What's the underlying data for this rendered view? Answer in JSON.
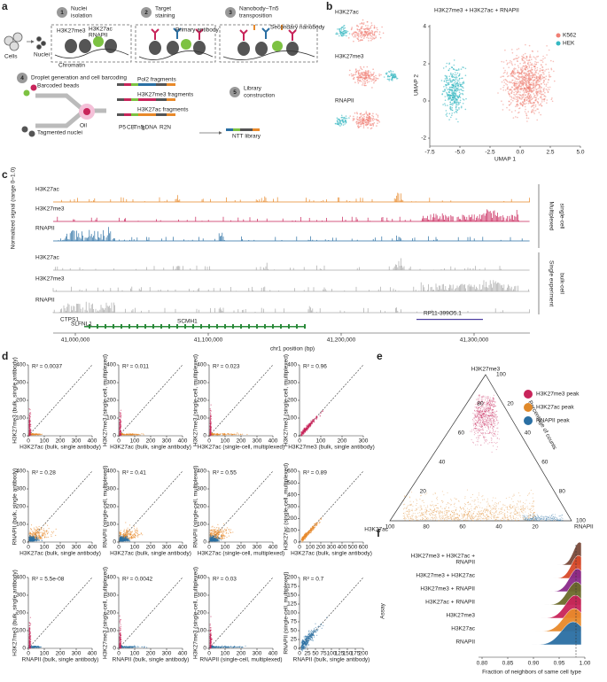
{
  "panel_a": {
    "label": "a",
    "cells": "Cells",
    "nuclei": "Nuclei",
    "steps": [
      {
        "number": "1",
        "title": [
          "Nuclei",
          "isolation"
        ]
      },
      {
        "number": "2",
        "title": [
          "Target",
          "staining"
        ]
      },
      {
        "number": "3",
        "title": [
          "Nanobody–Tn5",
          "transposition"
        ]
      },
      {
        "number": "4",
        "title": [
          "Droplet generation and cell barcoding"
        ]
      },
      {
        "number": "5",
        "title": [
          "Library",
          "construction"
        ]
      }
    ],
    "marks": {
      "h3k27me3": "H3K27me3",
      "h3k27ac": "H3K27ac",
      "rnapii": "RNAPII",
      "chromatin": "Chromatin",
      "primary": "Primary antibody",
      "secondary": "Secondary nanobody",
      "beads": "Barcoded beads",
      "oil": "Oil",
      "tagmented": "Tagmented nuclei",
      "library": "NTT library"
    },
    "fragments": [
      "Pol2 fragments",
      "H3K27me3 fragments",
      "H3K27ac fragments"
    ],
    "read_structure": [
      "P5",
      "CB",
      "Tn5",
      "gDNA",
      "R2N"
    ]
  },
  "panel_b": {
    "label": "b",
    "small_titles": [
      "H3K27ac",
      "H3K27me3",
      "RNAPII"
    ],
    "title": "H3K27me3 + H3K27ac + RNAPII",
    "legend": [
      {
        "name": "K562",
        "color": "#f07f74"
      },
      {
        "name": "HEK",
        "color": "#35b8c2"
      }
    ],
    "xlabel": "UMAP 1",
    "ylabel": "UMAP 2",
    "xticks": [
      "-7.5",
      "-5.0",
      "-2.5",
      "0.0",
      "2.5",
      "5.0"
    ],
    "yticks": [
      "4",
      "2",
      "0",
      "-2"
    ]
  },
  "panel_c": {
    "label": "c",
    "ylabel": "Normalized signal (range 0–1.0)",
    "multiplexed_tracks": [
      "H3K27ac",
      "H3K27me3",
      "RNAPII"
    ],
    "multiplexed_group": [
      "Multiplexed",
      "single-cell"
    ],
    "bulk_tracks": [
      "H3K27ac",
      "H3K27me3",
      "RNAPII"
    ],
    "bulk_group": [
      "Single experiment",
      "bulk-cell"
    ],
    "genes": [
      "CTPS1",
      "SLFNL1",
      "SCMH1",
      "RP11-399O5.1"
    ],
    "xlabel": "chr1 position (bp)",
    "xticks": [
      "41,000,000",
      "41,100,000",
      "41,200,000",
      "41,300,000"
    ],
    "track_colors": [
      "#e8892a",
      "#c8245a",
      "#2a6fa3",
      "#aaaaaa"
    ]
  },
  "panel_d": {
    "label": "d",
    "plots": [
      {
        "r2": "R² = 0.0037",
        "ylabel": "H3K27me3 (bulk, single antibody)",
        "xlabel": "H3K27ac (bulk, single antibody)",
        "xticks": [
          "0",
          "100",
          "200",
          "300",
          "400"
        ],
        "yticks": [
          "0",
          "100",
          "200",
          "300",
          "400"
        ],
        "colors": [
          "#c8245a",
          "#e8892a"
        ]
      },
      {
        "r2": "R² = 0.011",
        "ylabel": "H3K27me3 (single-cell, multiplexed)",
        "xlabel": "H3K27ac (bulk, single antibody)",
        "xticks": [
          "0",
          "100",
          "200",
          "300",
          "400"
        ],
        "yticks": [
          "0",
          "100",
          "200",
          "300",
          "400"
        ],
        "colors": [
          "#c8245a",
          "#e8892a"
        ]
      },
      {
        "r2": "R² = 0.023",
        "ylabel": "H3K27me3 (single-cell, multiplexed)",
        "xlabel": "H3K27ac (single-cell, multiplexed)",
        "xticks": [
          "0",
          "100",
          "200",
          "300",
          "400"
        ],
        "yticks": [
          "0",
          "100",
          "200",
          "300",
          "400"
        ],
        "colors": [
          "#c8245a",
          "#e8892a"
        ]
      },
      {
        "r2": "R² = 0.96",
        "ylabel": "H3K27me3 (single-cell, multiplexed)",
        "xlabel": "H3K27me3 (bulk, single antibody)",
        "xticks": [
          "0",
          "100",
          "200",
          "300"
        ],
        "yticks": [
          "0",
          "100",
          "200",
          "300",
          "400"
        ],
        "colors": [
          "#c8245a",
          "#c8245a"
        ]
      },
      {
        "r2": "R² = 0.28",
        "ylabel": "RNAPII (bulk, single antibody)",
        "xlabel": "H3K27ac (bulk, single antibody)",
        "xticks": [
          "0",
          "100",
          "200",
          "300",
          "400"
        ],
        "yticks": [
          "0",
          "100",
          "200",
          "300",
          "400"
        ],
        "colors": [
          "#2a6fa3",
          "#e8892a"
        ]
      },
      {
        "r2": "R² = 0.41",
        "ylabel": "RNAPII (single-cell, multiplexed)",
        "xlabel": "H3K27ac (bulk, single antibody)",
        "xticks": [
          "0",
          "100",
          "200",
          "300",
          "400"
        ],
        "yticks": [
          "0",
          "100",
          "200",
          "300",
          "400"
        ],
        "colors": [
          "#2a6fa3",
          "#e8892a"
        ]
      },
      {
        "r2": "R² = 0.55",
        "ylabel": "RNAPII (single-cell, multiplexed)",
        "xlabel": "H3K27ac (single-cell, multiplexed)",
        "xticks": [
          "0",
          "100",
          "200",
          "300",
          "400"
        ],
        "yticks": [
          "0",
          "100",
          "200",
          "300",
          "400"
        ],
        "colors": [
          "#2a6fa3",
          "#e8892a"
        ]
      },
      {
        "r2": "R² = 0.89",
        "ylabel": "H3K27ac (single-cell, multiplexed)",
        "xlabel": "H3K27ac (bulk, single antibody)",
        "xticks": [
          "0",
          "100",
          "200",
          "300",
          "400",
          "500",
          "600"
        ],
        "yticks": [
          "0",
          "100",
          "200",
          "300",
          "400",
          "500",
          "600"
        ],
        "colors": [
          "#e8892a",
          "#e8892a"
        ]
      },
      {
        "r2": "R² = 5.5e-08",
        "ylabel": "H3K27me3 (bulk, single antibody)",
        "xlabel": "RNAPII (bulk, single antibody)",
        "xticks": [
          "0",
          "100",
          "200",
          "300",
          "400"
        ],
        "yticks": [
          "0",
          "100",
          "200",
          "300",
          "400"
        ],
        "colors": [
          "#c8245a",
          "#2a6fa3"
        ]
      },
      {
        "r2": "R² = 0.0042",
        "ylabel": "H3K27me3 (single-cell, multiplexed)",
        "xlabel": "RNAPII (bulk, single antibody)",
        "xticks": [
          "0",
          "100",
          "200",
          "300",
          "400"
        ],
        "yticks": [
          "0",
          "100",
          "200",
          "300",
          "400"
        ],
        "colors": [
          "#c8245a",
          "#2a6fa3"
        ]
      },
      {
        "r2": "R² = 0.03",
        "ylabel": "H3K27me3 (single-cell, multiplexed)",
        "xlabel": "RNAPII (single-cell, multiplexed)",
        "xticks": [
          "0",
          "100",
          "200",
          "300",
          "400"
        ],
        "yticks": [
          "0",
          "100",
          "200",
          "300",
          "400"
        ],
        "colors": [
          "#c8245a",
          "#2a6fa3"
        ]
      },
      {
        "r2": "R² = 0.7",
        "ylabel": "RNAPII (single-cell, multiplexed)",
        "xlabel": "RNAPII (bulk, single antibody)",
        "xticks": [
          "0",
          "25",
          "50",
          "75",
          "100",
          "125",
          "150",
          "175",
          "200"
        ],
        "yticks": [
          "0",
          "25",
          "50",
          "75",
          "100",
          "125",
          "150",
          "175",
          "200"
        ],
        "colors": [
          "#2a6fa3",
          "#2a6fa3"
        ]
      }
    ]
  },
  "panel_e": {
    "label": "e",
    "legend": [
      {
        "name": "H3K27me3 peak",
        "color": "#c8245a"
      },
      {
        "name": "H3K27ac peak",
        "color": "#e0892a"
      },
      {
        "name": "RNAPII peak",
        "color": "#2a6fa3"
      }
    ],
    "vertices": [
      "H3K27me3",
      "H3K27ac",
      "RNAPII"
    ],
    "side_label": "Percentage of counts",
    "ticks": [
      "20",
      "40",
      "60",
      "80",
      "100"
    ]
  },
  "panel_f": {
    "label": "f",
    "categories": [
      [
        "H3K27me3 + H3K27ac +",
        "RNAPII"
      ],
      [
        "H3K27me3 + H3K27ac"
      ],
      [
        "H3K27me3 + RNAPII"
      ],
      [
        "H3K27ac + RNAPII"
      ],
      [
        "H3K27me3"
      ],
      [
        "H3K27ac"
      ],
      [
        "RNAPII"
      ]
    ],
    "colors": [
      "#7a4a3a",
      "#d84a2a",
      "#8a2a8a",
      "#6b6a2a",
      "#c8245a",
      "#e8892a",
      "#2a6fa3"
    ],
    "ylabel": "Assay",
    "xlabel": "Fraction of neighbors of same cell type",
    "xticks": [
      "0.80",
      "0.85",
      "0.90",
      "0.95",
      "1.00"
    ]
  }
}
